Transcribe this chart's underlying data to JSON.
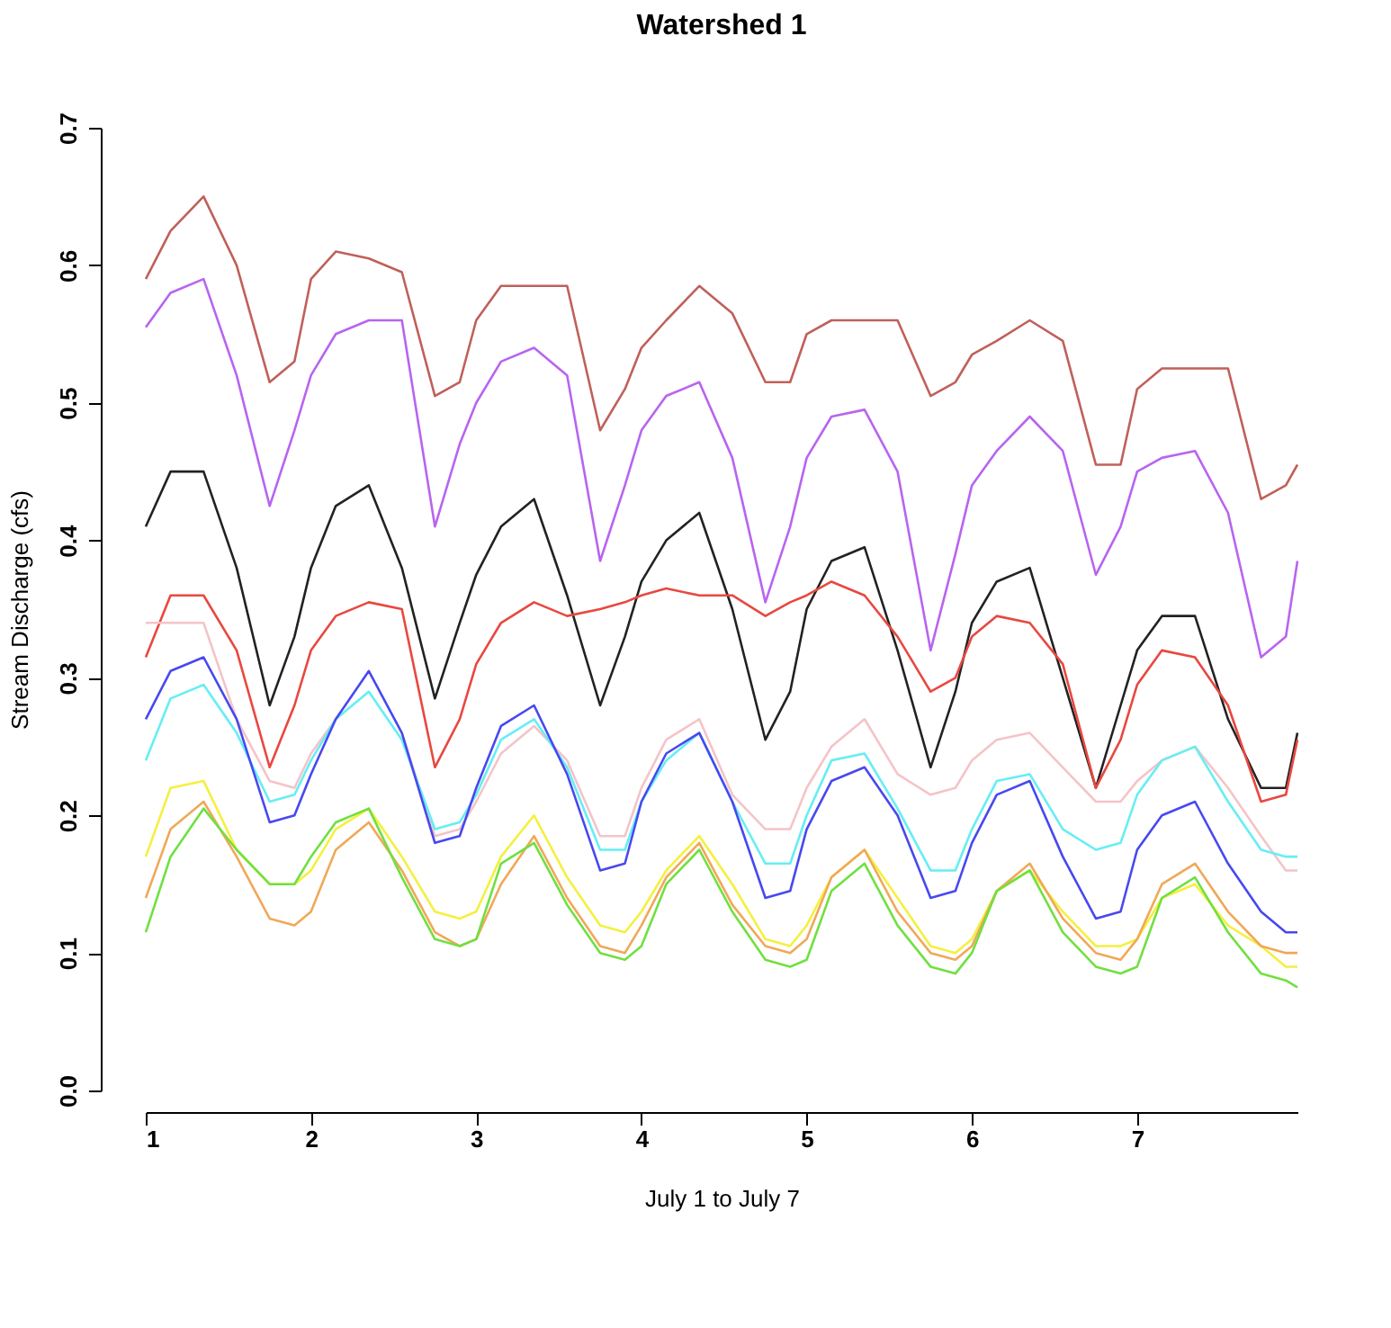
{
  "chart_data": {
    "type": "line",
    "title": "Watershed 1",
    "xlabel": "July 1 to July 7",
    "ylabel": "Stream Discharge (cfs)",
    "x": [
      1.0,
      1.15,
      1.35,
      1.55,
      1.75,
      1.9,
      2.0,
      2.15,
      2.35,
      2.55,
      2.75,
      2.9,
      3.0,
      3.15,
      3.35,
      3.55,
      3.75,
      3.9,
      4.0,
      4.15,
      4.35,
      4.55,
      4.75,
      4.9,
      5.0,
      5.15,
      5.35,
      5.55,
      5.75,
      5.9,
      6.0,
      6.15,
      6.35,
      6.55,
      6.75,
      6.9,
      7.0,
      7.15,
      7.35,
      7.55,
      7.75,
      7.9,
      7.97
    ],
    "xlim": [
      1,
      7.97
    ],
    "xticks": [
      1,
      2,
      3,
      4,
      5,
      6,
      7
    ],
    "ylim": [
      0,
      0.7
    ],
    "yticks": [
      {
        "value": 0,
        "label": "0.0"
      },
      0.1,
      0.2,
      0.3,
      0.4,
      0.5,
      0.6,
      0.7
    ],
    "grid": false,
    "legend": false,
    "marker": "none",
    "line_style": "solid",
    "series": [
      {
        "color": "#c0605a",
        "values": [
          0.59,
          0.625,
          0.65,
          0.6,
          0.515,
          0.53,
          0.59,
          0.61,
          0.605,
          0.595,
          0.505,
          0.515,
          0.56,
          0.585,
          0.585,
          0.585,
          0.48,
          0.51,
          0.54,
          0.56,
          0.585,
          0.565,
          0.515,
          0.515,
          0.55,
          0.56,
          0.56,
          0.56,
          0.505,
          0.515,
          0.535,
          0.545,
          0.56,
          0.545,
          0.455,
          0.455,
          0.51,
          0.525,
          0.525,
          0.525,
          0.43,
          0.44,
          0.455
        ]
      },
      {
        "color": "#b864f0",
        "values": [
          0.555,
          0.58,
          0.59,
          0.52,
          0.425,
          0.48,
          0.52,
          0.55,
          0.56,
          0.56,
          0.41,
          0.47,
          0.5,
          0.53,
          0.54,
          0.52,
          0.385,
          0.44,
          0.48,
          0.505,
          0.515,
          0.46,
          0.355,
          0.41,
          0.46,
          0.49,
          0.495,
          0.45,
          0.32,
          0.39,
          0.44,
          0.465,
          0.49,
          0.465,
          0.375,
          0.41,
          0.45,
          0.46,
          0.465,
          0.42,
          0.315,
          0.33,
          0.385
        ]
      },
      {
        "color": "#222222",
        "values": [
          0.41,
          0.45,
          0.45,
          0.38,
          0.28,
          0.33,
          0.38,
          0.425,
          0.44,
          0.38,
          0.285,
          0.34,
          0.375,
          0.41,
          0.43,
          0.36,
          0.28,
          0.33,
          0.37,
          0.4,
          0.42,
          0.35,
          0.255,
          0.29,
          0.35,
          0.385,
          0.395,
          0.32,
          0.235,
          0.29,
          0.34,
          0.37,
          0.38,
          0.3,
          0.22,
          0.28,
          0.32,
          0.345,
          0.345,
          0.27,
          0.22,
          0.22,
          0.26
        ]
      },
      {
        "color": "#e84840",
        "values": [
          0.315,
          0.36,
          0.36,
          0.32,
          0.235,
          0.28,
          0.32,
          0.345,
          0.355,
          0.35,
          0.235,
          0.27,
          0.31,
          0.34,
          0.355,
          0.345,
          0.35,
          0.355,
          0.36,
          0.365,
          0.36,
          0.36,
          0.345,
          0.355,
          0.36,
          0.37,
          0.36,
          0.33,
          0.29,
          0.3,
          0.33,
          0.345,
          0.34,
          0.31,
          0.22,
          0.255,
          0.295,
          0.32,
          0.315,
          0.28,
          0.21,
          0.215,
          0.255
        ]
      },
      {
        "color": "#f4c4c8",
        "values": [
          0.34,
          0.34,
          0.34,
          0.27,
          0.225,
          0.22,
          0.245,
          0.27,
          null,
          0.26,
          0.185,
          0.19,
          0.21,
          0.245,
          0.265,
          0.24,
          0.185,
          0.185,
          0.22,
          0.255,
          0.27,
          0.215,
          0.19,
          0.19,
          0.22,
          0.25,
          0.27,
          0.23,
          0.215,
          0.22,
          0.24,
          0.255,
          0.26,
          0.235,
          0.21,
          0.21,
          0.225,
          0.24,
          0.25,
          0.22,
          0.185,
          0.16,
          0.16
        ]
      },
      {
        "color": "#66eef4",
        "values": [
          0.24,
          0.285,
          0.295,
          0.26,
          0.21,
          0.215,
          0.24,
          0.27,
          0.29,
          0.255,
          0.19,
          0.195,
          0.215,
          0.255,
          0.27,
          0.235,
          0.175,
          0.175,
          0.21,
          0.24,
          0.26,
          0.21,
          0.165,
          0.165,
          0.2,
          0.24,
          0.245,
          0.205,
          0.16,
          0.16,
          0.19,
          0.225,
          0.23,
          0.19,
          0.175,
          0.18,
          0.215,
          0.24,
          0.25,
          0.21,
          0.175,
          0.17,
          0.17
        ]
      },
      {
        "color": "#4848f0",
        "values": [
          0.27,
          0.305,
          0.315,
          0.27,
          0.195,
          0.2,
          0.23,
          0.27,
          0.305,
          0.26,
          0.18,
          0.185,
          0.22,
          0.265,
          0.28,
          0.23,
          0.16,
          0.165,
          0.21,
          0.245,
          0.26,
          0.21,
          0.14,
          0.145,
          0.19,
          0.225,
          0.235,
          0.2,
          0.14,
          0.145,
          0.18,
          0.215,
          0.225,
          0.17,
          0.125,
          0.13,
          0.175,
          0.2,
          0.21,
          0.165,
          0.13,
          0.115,
          0.115
        ]
      },
      {
        "color": "#f4f040",
        "values": [
          0.17,
          0.22,
          0.225,
          0.175,
          0.15,
          0.15,
          0.16,
          0.19,
          0.205,
          0.17,
          0.13,
          0.125,
          0.13,
          0.17,
          0.2,
          0.155,
          0.12,
          0.115,
          0.13,
          0.16,
          0.185,
          0.15,
          0.11,
          0.105,
          0.12,
          0.155,
          0.175,
          0.14,
          0.105,
          0.1,
          0.11,
          0.145,
          0.16,
          0.13,
          0.105,
          0.105,
          0.11,
          0.14,
          0.15,
          0.12,
          0.105,
          0.09,
          0.09
        ]
      },
      {
        "color": "#f0a858",
        "values": [
          0.14,
          0.19,
          0.21,
          0.17,
          0.125,
          0.12,
          0.13,
          0.175,
          0.195,
          0.16,
          0.115,
          0.105,
          0.11,
          0.15,
          0.185,
          0.14,
          0.105,
          0.1,
          0.12,
          0.155,
          0.18,
          0.135,
          0.105,
          0.1,
          0.11,
          0.155,
          0.175,
          0.13,
          0.1,
          0.095,
          0.105,
          0.145,
          0.165,
          0.125,
          0.1,
          0.095,
          0.11,
          0.15,
          0.165,
          0.13,
          0.105,
          0.1,
          0.1
        ]
      },
      {
        "color": "#70e040",
        "values": [
          0.115,
          0.17,
          0.205,
          0.175,
          0.15,
          0.15,
          0.17,
          0.195,
          0.205,
          0.155,
          0.11,
          0.105,
          0.11,
          0.165,
          0.18,
          0.135,
          0.1,
          0.095,
          0.105,
          0.15,
          0.175,
          0.13,
          0.095,
          0.09,
          0.095,
          0.145,
          0.165,
          0.12,
          0.09,
          0.085,
          0.1,
          0.145,
          0.16,
          0.115,
          0.09,
          0.085,
          0.09,
          0.14,
          0.155,
          0.115,
          0.085,
          0.08,
          0.075
        ]
      }
    ]
  }
}
